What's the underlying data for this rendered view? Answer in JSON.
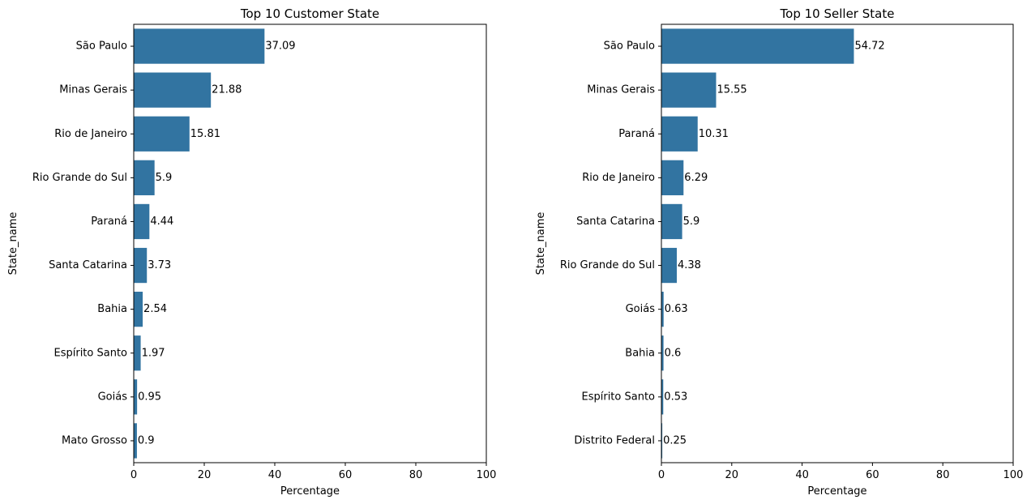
{
  "chart_data": [
    {
      "type": "bar",
      "orientation": "horizontal",
      "title": "Top 10 Customer State",
      "xlabel": "Percentage",
      "ylabel": "State_name",
      "xlim": [
        0,
        100
      ],
      "xticks": [
        "0",
        "20",
        "40",
        "60",
        "80",
        "100"
      ],
      "categories": [
        "São Paulo",
        "Minas Gerais",
        "Rio de Janeiro",
        "Rio Grande do Sul",
        "Paraná",
        "Santa Catarina",
        "Bahia",
        "Espírito Santo",
        "Goiás",
        "Mato Grosso"
      ],
      "values": [
        37.09,
        21.88,
        15.81,
        5.9,
        4.44,
        3.73,
        2.54,
        1.97,
        0.95,
        0.9
      ],
      "value_labels": [
        "37.09",
        "21.88",
        "15.81",
        "5.9",
        "4.44",
        "3.73",
        "2.54",
        "1.97",
        "0.95",
        "0.9"
      ],
      "bar_color": "#3274a1",
      "grid": false
    },
    {
      "type": "bar",
      "orientation": "horizontal",
      "title": "Top 10 Seller State",
      "xlabel": "Percentage",
      "ylabel": "State_name",
      "xlim": [
        0,
        100
      ],
      "xticks": [
        "0",
        "20",
        "40",
        "60",
        "80",
        "100"
      ],
      "categories": [
        "São Paulo",
        "Minas Gerais",
        "Paraná",
        "Rio de Janeiro",
        "Santa Catarina",
        "Rio Grande do Sul",
        "Goiás",
        "Bahia",
        "Espírito Santo",
        "Distrito Federal"
      ],
      "values": [
        54.72,
        15.55,
        10.31,
        6.29,
        5.9,
        4.38,
        0.63,
        0.6,
        0.53,
        0.25
      ],
      "value_labels": [
        "54.72",
        "15.55",
        "10.31",
        "6.29",
        "5.9",
        "4.38",
        "0.63",
        "0.6",
        "0.53",
        "0.25"
      ],
      "bar_color": "#3274a1",
      "grid": false
    }
  ]
}
